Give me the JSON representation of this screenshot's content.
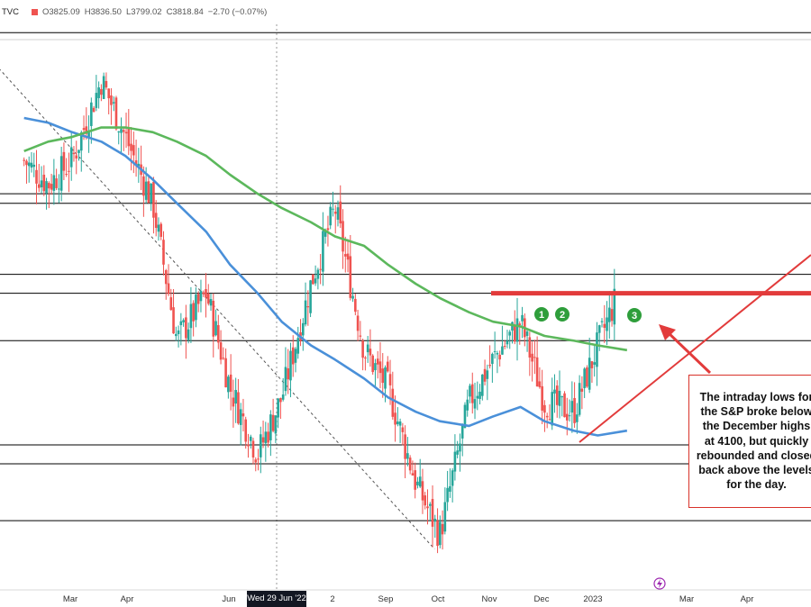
{
  "header": {
    "symbol": "TVC",
    "open": "O3825.09",
    "high": "H3836.50",
    "low": "L3799.02",
    "close": "C3818.84",
    "change": "−2.70 (−0.07%)"
  },
  "date_tag": "Wed 29 Jun '22",
  "x_ticks": [
    "Mar",
    "Apr",
    "Jun",
    "2",
    "Sep",
    "Oct",
    "Nov",
    "Dec",
    "2023",
    "Mar",
    "Apr"
  ],
  "callout": {
    "lines": [
      "The intraday lows for",
      "the S&P broke below",
      "the December highs",
      "at 4100, but quickly",
      "rebounded and closed",
      "back above the levels",
      "for the day."
    ]
  },
  "markers": [
    "1",
    "2",
    "3"
  ],
  "colors": {
    "up": "#26a69a",
    "down": "#ef5350",
    "ma100": "#4a90d9",
    "ma200": "#5cb85c",
    "support": "#e23b3b",
    "level": "#000000",
    "marker": "#2e9e3b"
  },
  "chart_data": {
    "type": "candlestick",
    "x": [
      "2022-02-15",
      "2022-03-01",
      "2022-03-15",
      "2022-04-01",
      "2022-04-15",
      "2022-05-01",
      "2022-05-15",
      "2022-06-01",
      "2022-06-15",
      "2022-07-01",
      "2022-07-15",
      "2022-08-01",
      "2022-08-15",
      "2022-09-01",
      "2022-09-15",
      "2022-10-01",
      "2022-10-15",
      "2022-11-01",
      "2022-11-15",
      "2022-12-01",
      "2022-12-15",
      "2023-01-01",
      "2023-01-15",
      "2023-02-01"
    ],
    "close": [
      4380,
      4330,
      4380,
      4550,
      4430,
      4290,
      4000,
      4100,
      3900,
      3760,
      3880,
      4120,
      4280,
      3980,
      3900,
      3700,
      3590,
      3870,
      3960,
      4040,
      3870,
      3850,
      3990,
      4150
    ],
    "series": [
      {
        "name": "",
        "type": "moving-average",
        "values": [
          4470,
          4460,
          4440,
          4420,
          4390,
          4340,
          4290,
          4230,
          4160,
          4100,
          4040,
          3990,
          3960,
          3920,
          3880,
          3850,
          3830,
          3820,
          3840,
          3860,
          3830,
          3810,
          3800,
          3810
        ]
      },
      {
        "name": "",
        "type": "moving-average",
        "values": [
          4400,
          4420,
          4430,
          4450,
          4450,
          4440,
          4420,
          4390,
          4350,
          4310,
          4280,
          4250,
          4220,
          4200,
          4160,
          4120,
          4090,
          4060,
          4040,
          4030,
          4010,
          4000,
          3990,
          3980
        ]
      }
    ],
    "horizontal_levels": [
      4650,
      4310,
      4290,
      4140,
      4100,
      4000,
      3780,
      3740,
      3620
    ],
    "annotated_level": 4100,
    "ylim": [
      3550,
      4700
    ]
  }
}
